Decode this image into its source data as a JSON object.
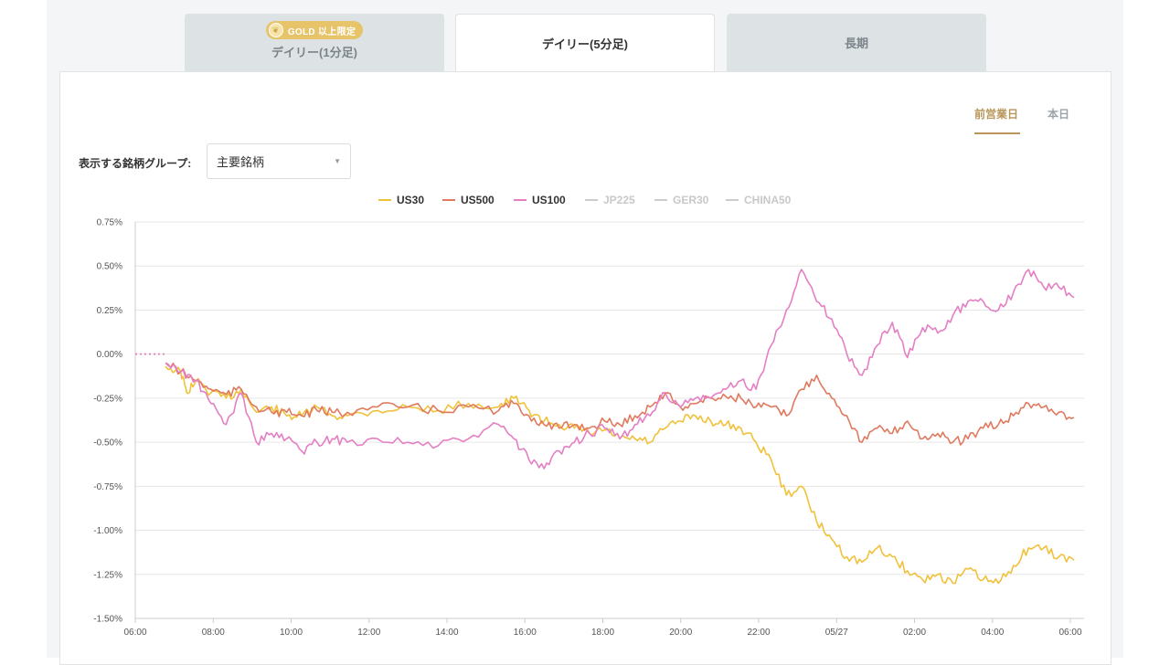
{
  "tabs": [
    {
      "label": "デイリー(1分足)",
      "badge": "GOLD 以上限定",
      "active": false
    },
    {
      "label": "デイリー(5分足)",
      "active": true
    },
    {
      "label": "長期",
      "active": false
    }
  ],
  "period": {
    "previous": "前営業日",
    "today": "本日",
    "selected": "前営業日"
  },
  "group": {
    "label": "表示する銘柄グループ:",
    "value": "主要銘柄"
  },
  "colors": {
    "accent": "#b8965a",
    "us30": "#f0c13a",
    "us500": "#e07a5f",
    "us100": "#e47fc4",
    "disabled": "#cccccc"
  },
  "chart_data": {
    "type": "line",
    "legend": [
      {
        "name": "US30",
        "enabled": true
      },
      {
        "name": "US500",
        "enabled": true
      },
      {
        "name": "US100",
        "enabled": true
      },
      {
        "name": "JP225",
        "enabled": false
      },
      {
        "name": "GER30",
        "enabled": false
      },
      {
        "name": "CHINA50",
        "enabled": false
      }
    ],
    "x_tick_labels": [
      "06:00",
      "08:00",
      "10:00",
      "12:00",
      "14:00",
      "16:00",
      "18:00",
      "20:00",
      "22:00",
      "05/27",
      "02:00",
      "04:00",
      "06:00"
    ],
    "y_tick_labels": [
      "0.75%",
      "0.50%",
      "0.25%",
      "0.00%",
      "-0.25%",
      "-0.50%",
      "-0.75%",
      "-1.00%",
      "-1.25%",
      "-1.50%"
    ],
    "ylim": [
      -1.5,
      0.75
    ],
    "x_hours_range": [
      0,
      24.3
    ],
    "series": [
      {
        "name": "US30",
        "points": [
          [
            0,
            0
          ],
          [
            1,
            0
          ],
          [
            1,
            -0.07
          ],
          [
            1.5,
            -0.1
          ],
          [
            1.7,
            -0.22
          ],
          [
            2,
            -0.15
          ],
          [
            2.5,
            -0.22
          ],
          [
            3,
            -0.25
          ],
          [
            3.5,
            -0.2
          ],
          [
            4,
            -0.33
          ],
          [
            4.5,
            -0.3
          ],
          [
            5,
            -0.35
          ],
          [
            5.5,
            -0.35
          ],
          [
            6,
            -0.3
          ],
          [
            6.5,
            -0.35
          ],
          [
            7,
            -0.35
          ],
          [
            8,
            -0.32
          ],
          [
            9,
            -0.3
          ],
          [
            10,
            -0.32
          ],
          [
            11,
            -0.28
          ],
          [
            12,
            -0.3
          ],
          [
            12.5,
            -0.25
          ],
          [
            13,
            -0.32
          ],
          [
            13.5,
            -0.38
          ],
          [
            14,
            -0.4
          ],
          [
            14.5,
            -0.42
          ],
          [
            15,
            -0.45
          ],
          [
            15.5,
            -0.43
          ],
          [
            16,
            -0.48
          ],
          [
            16.5,
            -0.48
          ],
          [
            17,
            -0.5
          ],
          [
            17.5,
            -0.42
          ],
          [
            18,
            -0.38
          ],
          [
            18.5,
            -0.35
          ],
          [
            19,
            -0.38
          ],
          [
            19.5,
            -0.4
          ],
          [
            20,
            -0.42
          ],
          [
            20.5,
            -0.5
          ],
          [
            21,
            -0.6
          ],
          [
            21.5,
            -0.8
          ],
          [
            22,
            -0.75
          ],
          [
            22.5,
            -0.95
          ],
          [
            23,
            -1.05
          ],
          [
            23.5,
            -1.15
          ],
          [
            24,
            -1.18
          ],
          [
            24.5,
            -1.1
          ],
          [
            25,
            -1.15
          ],
          [
            25.5,
            -1.23
          ],
          [
            26,
            -1.28
          ],
          [
            26.5,
            -1.25
          ],
          [
            27,
            -1.3
          ],
          [
            27.5,
            -1.22
          ],
          [
            28,
            -1.28
          ],
          [
            28.5,
            -1.3
          ],
          [
            29,
            -1.2
          ],
          [
            29.5,
            -1.1
          ],
          [
            30,
            -1.1
          ],
          [
            30.5,
            -1.15
          ],
          [
            31,
            -1.17
          ]
        ]
      },
      {
        "name": "US500",
        "points": [
          [
            0,
            0
          ],
          [
            1,
            0
          ],
          [
            1,
            -0.05
          ],
          [
            1.5,
            -0.1
          ],
          [
            2,
            -0.15
          ],
          [
            2.5,
            -0.2
          ],
          [
            3,
            -0.23
          ],
          [
            3.5,
            -0.2
          ],
          [
            4,
            -0.3
          ],
          [
            4.5,
            -0.33
          ],
          [
            5,
            -0.33
          ],
          [
            5.5,
            -0.35
          ],
          [
            6,
            -0.32
          ],
          [
            6.5,
            -0.33
          ],
          [
            7,
            -0.33
          ],
          [
            8,
            -0.3
          ],
          [
            9,
            -0.3
          ],
          [
            10,
            -0.32
          ],
          [
            11,
            -0.3
          ],
          [
            12,
            -0.32
          ],
          [
            12.5,
            -0.28
          ],
          [
            13,
            -0.35
          ],
          [
            13.5,
            -0.4
          ],
          [
            14,
            -0.42
          ],
          [
            14.5,
            -0.4
          ],
          [
            15,
            -0.42
          ],
          [
            15.5,
            -0.38
          ],
          [
            16,
            -0.4
          ],
          [
            16.5,
            -0.35
          ],
          [
            17,
            -0.3
          ],
          [
            17.5,
            -0.22
          ],
          [
            18,
            -0.3
          ],
          [
            18.5,
            -0.28
          ],
          [
            19,
            -0.25
          ],
          [
            19.5,
            -0.24
          ],
          [
            20,
            -0.25
          ],
          [
            20.5,
            -0.3
          ],
          [
            21,
            -0.3
          ],
          [
            21.5,
            -0.35
          ],
          [
            22,
            -0.2
          ],
          [
            22.5,
            -0.12
          ],
          [
            23,
            -0.25
          ],
          [
            23.5,
            -0.35
          ],
          [
            24,
            -0.5
          ],
          [
            24.5,
            -0.42
          ],
          [
            25,
            -0.45
          ],
          [
            25.5,
            -0.38
          ],
          [
            26,
            -0.48
          ],
          [
            26.5,
            -0.45
          ],
          [
            27,
            -0.5
          ],
          [
            27.5,
            -0.48
          ],
          [
            28,
            -0.42
          ],
          [
            28.5,
            -0.4
          ],
          [
            29,
            -0.35
          ],
          [
            29.5,
            -0.28
          ],
          [
            30,
            -0.3
          ],
          [
            30.5,
            -0.33
          ],
          [
            31,
            -0.36
          ]
        ]
      },
      {
        "name": "US100",
        "points": [
          [
            0,
            0
          ],
          [
            1,
            0
          ],
          [
            1,
            -0.05
          ],
          [
            1.5,
            -0.1
          ],
          [
            2,
            -0.15
          ],
          [
            2.5,
            -0.28
          ],
          [
            3,
            -0.4
          ],
          [
            3.5,
            -0.22
          ],
          [
            4,
            -0.5
          ],
          [
            4.5,
            -0.45
          ],
          [
            5,
            -0.48
          ],
          [
            5.5,
            -0.55
          ],
          [
            6,
            -0.5
          ],
          [
            6.5,
            -0.48
          ],
          [
            7,
            -0.5
          ],
          [
            8,
            -0.48
          ],
          [
            9,
            -0.5
          ],
          [
            10,
            -0.52
          ],
          [
            11,
            -0.48
          ],
          [
            12,
            -0.4
          ],
          [
            12.5,
            -0.48
          ],
          [
            13,
            -0.6
          ],
          [
            13.5,
            -0.65
          ],
          [
            14,
            -0.55
          ],
          [
            14.5,
            -0.5
          ],
          [
            15,
            -0.45
          ],
          [
            15.5,
            -0.42
          ],
          [
            16,
            -0.48
          ],
          [
            16.5,
            -0.4
          ],
          [
            17,
            -0.35
          ],
          [
            17.5,
            -0.22
          ],
          [
            18,
            -0.3
          ],
          [
            18.5,
            -0.25
          ],
          [
            19,
            -0.25
          ],
          [
            19.5,
            -0.2
          ],
          [
            20,
            -0.15
          ],
          [
            20.5,
            -0.2
          ],
          [
            21,
            0.05
          ],
          [
            21.5,
            0.25
          ],
          [
            22,
            0.48
          ],
          [
            22.5,
            0.3
          ],
          [
            23,
            0.2
          ],
          [
            23.5,
            0.0
          ],
          [
            24,
            -0.12
          ],
          [
            24.5,
            0.05
          ],
          [
            25,
            0.18
          ],
          [
            25.5,
            -0.02
          ],
          [
            26,
            0.15
          ],
          [
            26.5,
            0.12
          ],
          [
            27,
            0.22
          ],
          [
            27.5,
            0.3
          ],
          [
            28,
            0.3
          ],
          [
            28.5,
            0.25
          ],
          [
            29,
            0.35
          ],
          [
            29.5,
            0.48
          ],
          [
            30,
            0.38
          ],
          [
            30.5,
            0.38
          ],
          [
            31,
            0.32
          ]
        ]
      }
    ]
  }
}
